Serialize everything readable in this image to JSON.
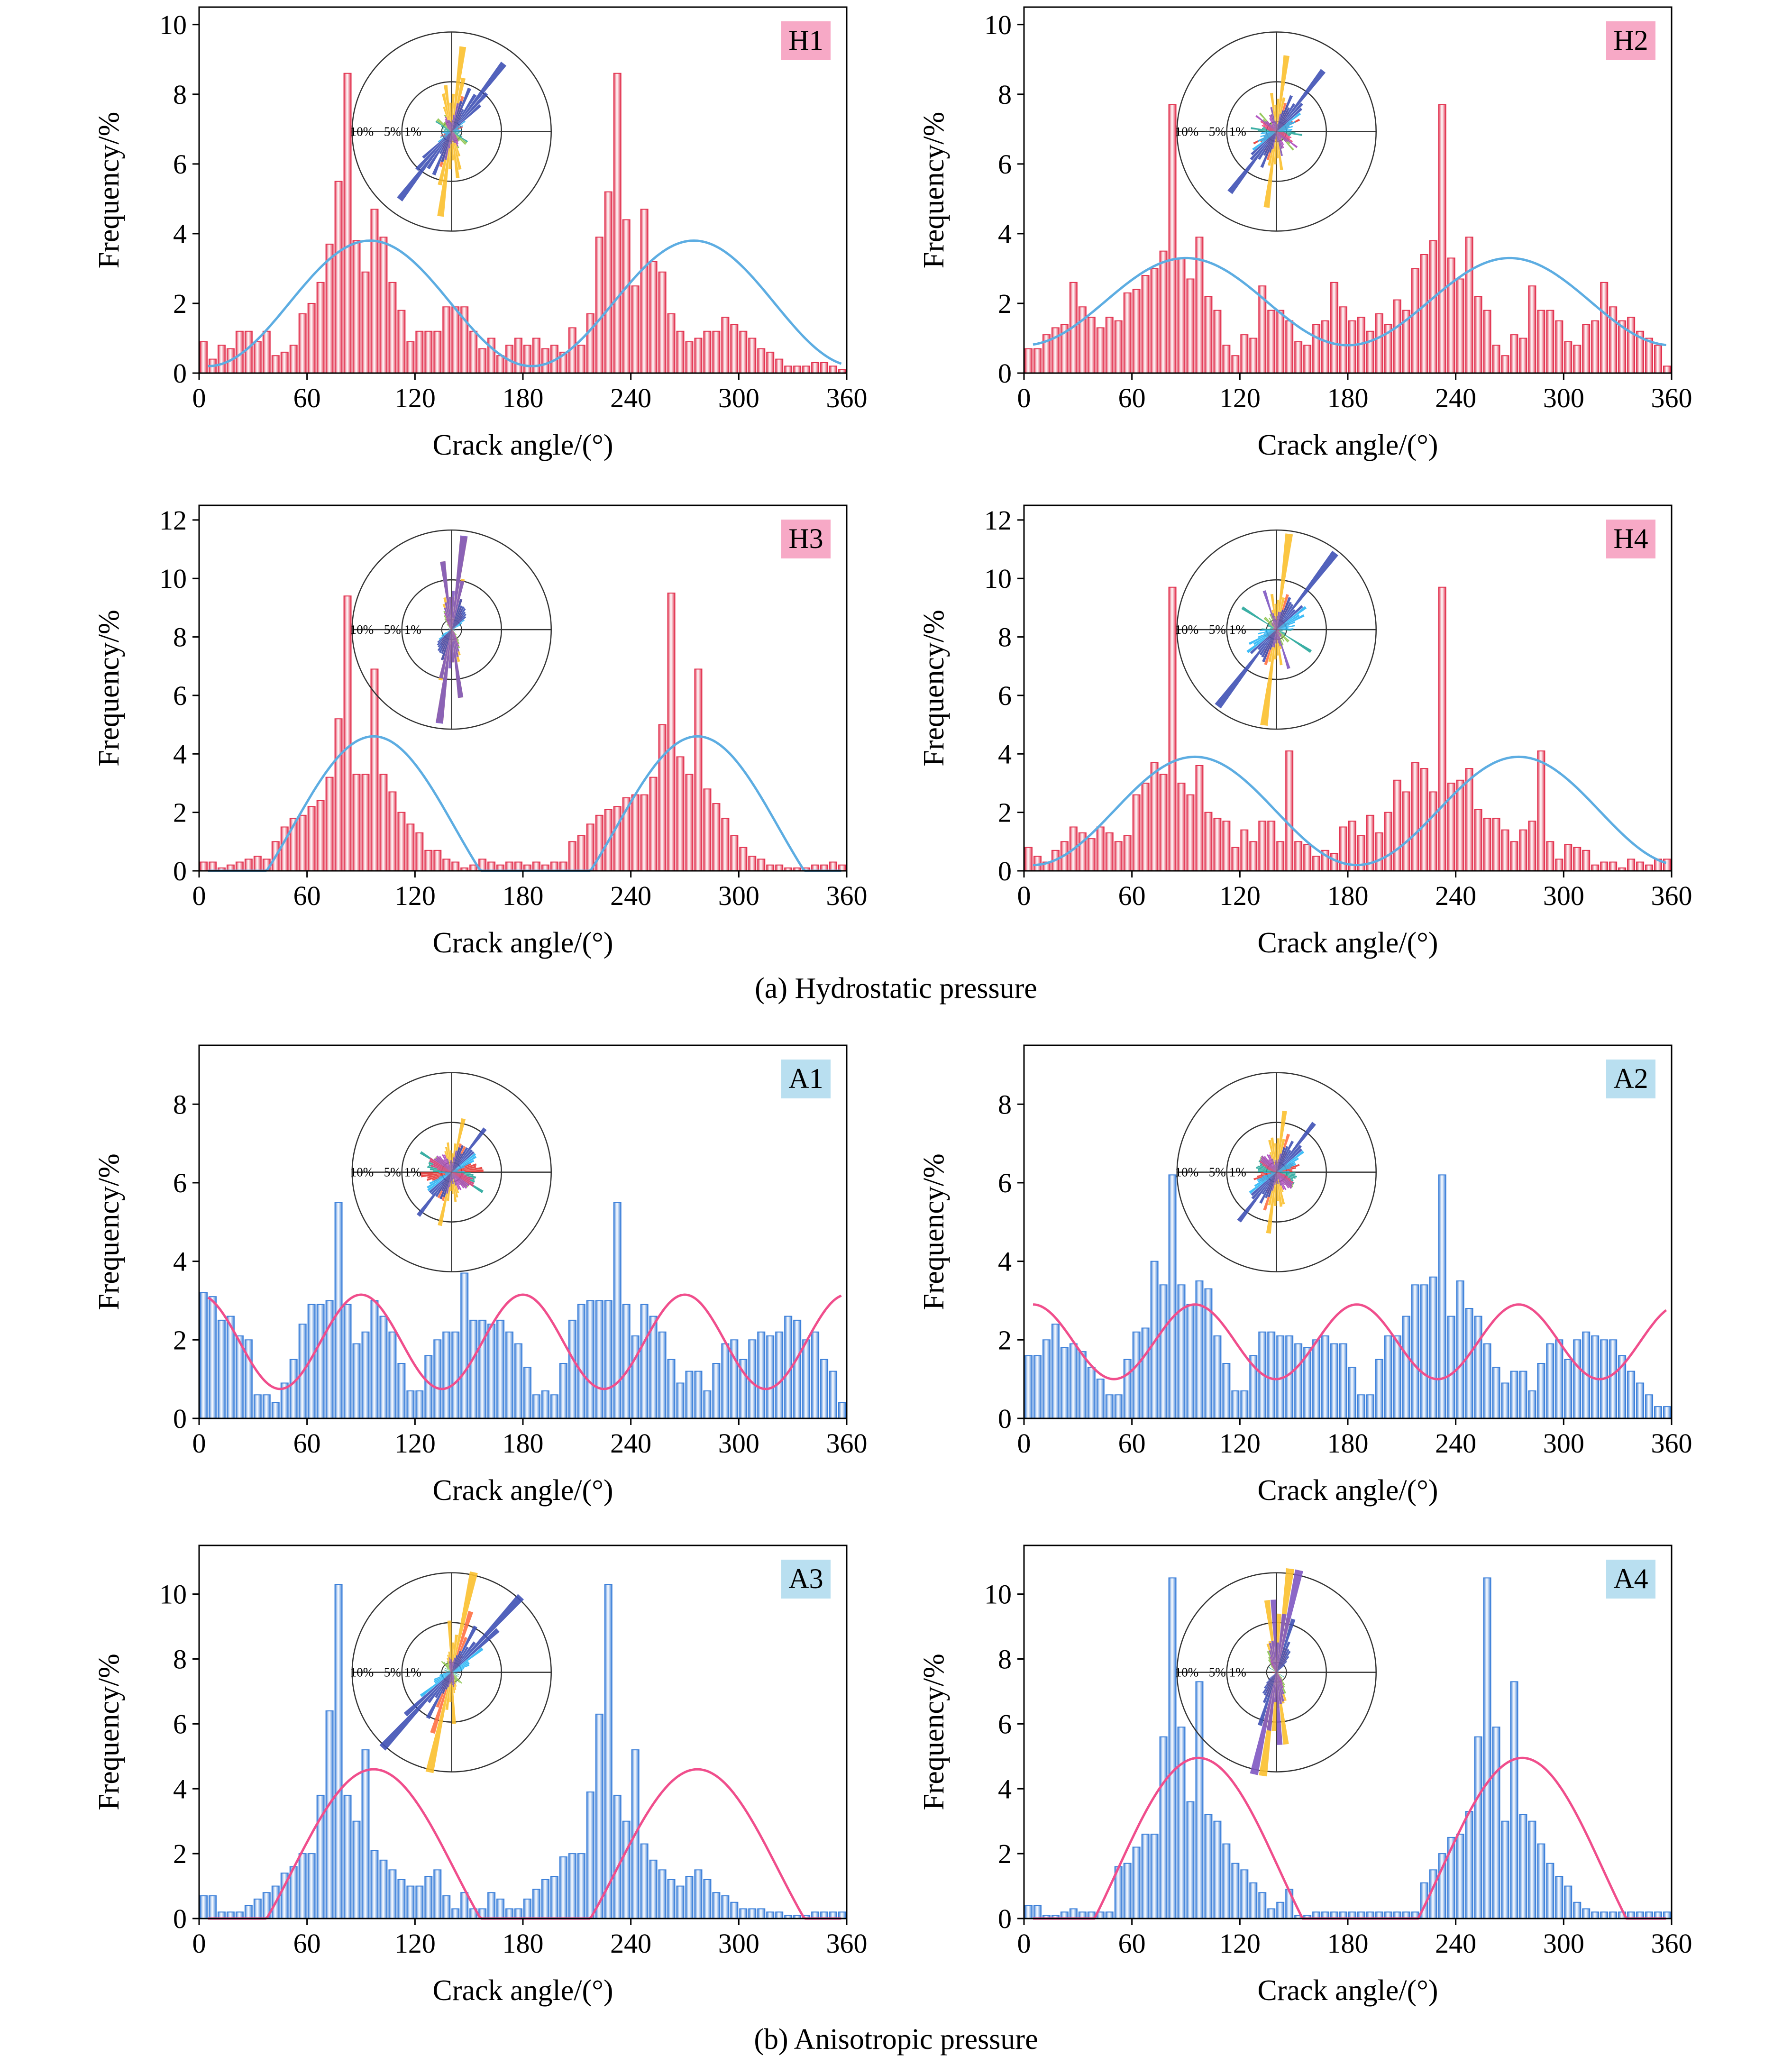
{
  "figure": {
    "captions": [
      "(a) Hydrostatic pressure",
      "(b) Anisotropic pressure"
    ]
  },
  "chart_data": [
    {
      "type": "bar",
      "tag": "H1",
      "tag_color": "#f7a9c6",
      "bar_color": "#e2324f",
      "fit_color": "#5dade2",
      "xlabel": "Crack angle/(°)",
      "ylabel": "Frequency/%",
      "xlim": [
        0,
        360
      ],
      "ylim": [
        0,
        10.5
      ],
      "xticks": [
        0,
        60,
        120,
        180,
        240,
        300,
        360
      ],
      "yticks": [
        0,
        2,
        4,
        6,
        8,
        10
      ],
      "bin_width": 5,
      "values": [
        0.9,
        0.4,
        0.8,
        0.7,
        1.2,
        1.2,
        0.9,
        1.2,
        0.5,
        0.6,
        0.8,
        1.7,
        2.0,
        2.6,
        3.7,
        5.5,
        8.6,
        3.8,
        2.9,
        4.7,
        3.9,
        2.6,
        1.8,
        0.9,
        1.2,
        1.2,
        1.2,
        1.9,
        1.9,
        1.9,
        1.2,
        0.7,
        1.0,
        0.5,
        0.8,
        1.0,
        0.8,
        1.0,
        0.7,
        0.8,
        0.6,
        1.3,
        0.8,
        1.7,
        3.9,
        5.2,
        8.6,
        4.4,
        2.5,
        4.7,
        3.2,
        2.9,
        1.7,
        1.2,
        0.9,
        1.0,
        1.2,
        1.2,
        1.6,
        1.4,
        1.2,
        1.0,
        0.7,
        0.6,
        0.4,
        0.2,
        0.2,
        0.2,
        0.3,
        0.3,
        0.2,
        0.1
      ],
      "fit": {
        "periods": 2,
        "mean": 2.0,
        "amp": 1.8,
        "peak": 95
      },
      "rose_labels": [
        "10%",
        "5%",
        "1%"
      ]
    },
    {
      "type": "bar",
      "tag": "H2",
      "tag_color": "#f7a9c6",
      "bar_color": "#e2324f",
      "fit_color": "#5dade2",
      "xlabel": "Crack angle/(°)",
      "ylabel": "Frequency/%",
      "xlim": [
        0,
        360
      ],
      "ylim": [
        0,
        10.5
      ],
      "xticks": [
        0,
        60,
        120,
        180,
        240,
        300,
        360
      ],
      "yticks": [
        0,
        2,
        4,
        6,
        8,
        10
      ],
      "bin_width": 5,
      "values": [
        0.7,
        0.7,
        1.1,
        1.3,
        1.4,
        2.6,
        1.9,
        1.6,
        1.3,
        1.6,
        1.5,
        2.3,
        2.4,
        2.8,
        3.0,
        3.5,
        7.7,
        3.3,
        2.7,
        3.9,
        2.2,
        1.8,
        0.8,
        0.5,
        1.1,
        1.0,
        2.5,
        1.8,
        1.8,
        1.5,
        0.9,
        0.8,
        1.4,
        1.5,
        2.6,
        1.9,
        1.5,
        1.6,
        1.2,
        1.7,
        1.4,
        2.1,
        1.8,
        3.0,
        3.4,
        3.8,
        7.7,
        3.3,
        2.7,
        3.9,
        2.2,
        1.8,
        0.8,
        0.5,
        1.1,
        1.0,
        2.5,
        1.8,
        1.8,
        1.5,
        0.9,
        0.8,
        1.4,
        1.5,
        2.6,
        1.9,
        1.5,
        1.6,
        1.2,
        1.0,
        0.8,
        0.2
      ],
      "fit": {
        "periods": 2,
        "mean": 2.05,
        "amp": 1.25,
        "peak": 90
      },
      "rose_labels": [
        "10%",
        "5%",
        "1%"
      ]
    },
    {
      "type": "bar",
      "tag": "H3",
      "tag_color": "#f7a9c6",
      "bar_color": "#e2324f",
      "fit_color": "#5dade2",
      "xlabel": "Crack angle/(°)",
      "ylabel": "Frequency/%",
      "xlim": [
        0,
        360
      ],
      "ylim": [
        0,
        12.5
      ],
      "xticks": [
        0,
        60,
        120,
        180,
        240,
        300,
        360
      ],
      "yticks": [
        0,
        2,
        4,
        6,
        8,
        10,
        12
      ],
      "bin_width": 5,
      "values": [
        0.3,
        0.3,
        0.1,
        0.2,
        0.3,
        0.4,
        0.5,
        0.4,
        1.0,
        1.5,
        1.8,
        1.9,
        2.2,
        2.4,
        3.2,
        5.2,
        9.4,
        3.3,
        3.3,
        6.9,
        3.3,
        2.7,
        2.0,
        1.6,
        1.3,
        0.7,
        0.7,
        0.4,
        0.3,
        0.1,
        0.2,
        0.4,
        0.3,
        0.2,
        0.3,
        0.3,
        0.2,
        0.3,
        0.2,
        0.3,
        0.3,
        1.0,
        1.2,
        1.6,
        1.9,
        2.1,
        2.2,
        2.5,
        2.6,
        2.6,
        3.2,
        5.0,
        9.5,
        3.9,
        3.3,
        6.9,
        2.8,
        2.3,
        1.8,
        1.2,
        0.8,
        0.5,
        0.4,
        0.2,
        0.2,
        0.1,
        0.1,
        0.1,
        0.2,
        0.2,
        0.3,
        0.2
      ],
      "fit": {
        "periods": 2,
        "mean": 1.5,
        "amp": 3.1,
        "peak": 97
      },
      "rose_labels": [
        "10%",
        "5%",
        "1%"
      ]
    },
    {
      "type": "bar",
      "tag": "H4",
      "tag_color": "#f7a9c6",
      "bar_color": "#e2324f",
      "fit_color": "#5dade2",
      "xlabel": "Crack angle/(°)",
      "ylabel": "Frequency/%",
      "xlim": [
        0,
        360
      ],
      "ylim": [
        0,
        12.5
      ],
      "xticks": [
        0,
        60,
        120,
        180,
        240,
        300,
        360
      ],
      "yticks": [
        0,
        2,
        4,
        6,
        8,
        10,
        12
      ],
      "bin_width": 5,
      "values": [
        0.8,
        0.5,
        0.3,
        0.7,
        1.0,
        1.5,
        1.3,
        1.1,
        1.5,
        1.3,
        1.0,
        1.2,
        2.6,
        3.0,
        3.7,
        3.3,
        9.7,
        3.0,
        2.6,
        3.6,
        2.0,
        1.8,
        1.7,
        0.8,
        1.4,
        1.0,
        1.7,
        1.7,
        1.0,
        4.1,
        1.0,
        0.9,
        0.5,
        0.7,
        0.6,
        1.5,
        1.7,
        1.2,
        1.9,
        1.3,
        2.0,
        3.1,
        2.7,
        3.7,
        3.5,
        2.7,
        9.7,
        3.0,
        3.1,
        3.5,
        2.1,
        1.8,
        1.8,
        1.4,
        1.0,
        1.4,
        1.7,
        4.1,
        1.0,
        0.4,
        0.9,
        0.8,
        0.7,
        0.2,
        0.3,
        0.3,
        0.1,
        0.4,
        0.3,
        0.2,
        0.4,
        0.4
      ],
      "fit": {
        "periods": 2,
        "mean": 2.05,
        "amp": 1.85,
        "peak": 95
      },
      "rose_labels": [
        "10%",
        "5%",
        "1%"
      ]
    },
    {
      "type": "bar",
      "tag": "A1",
      "tag_color": "#b9dff0",
      "bar_color": "#3b7fd9",
      "fit_color": "#f04e8c",
      "xlabel": "Crack angle/(°)",
      "ylabel": "Frequency/%",
      "xlim": [
        0,
        360
      ],
      "ylim": [
        0,
        9.5
      ],
      "xticks": [
        0,
        60,
        120,
        180,
        240,
        300,
        360
      ],
      "yticks": [
        0,
        2,
        4,
        6,
        8
      ],
      "bin_width": 5,
      "values": [
        3.2,
        3.1,
        2.5,
        2.6,
        2.1,
        2.0,
        0.6,
        0.6,
        0.4,
        0.9,
        1.5,
        2.4,
        2.9,
        2.9,
        3.0,
        5.5,
        2.9,
        1.9,
        2.2,
        3.0,
        2.6,
        2.2,
        1.4,
        0.7,
        0.7,
        1.6,
        2.0,
        2.2,
        2.2,
        3.7,
        2.5,
        2.5,
        2.4,
        2.5,
        2.2,
        1.9,
        1.3,
        0.6,
        0.7,
        0.6,
        1.4,
        2.5,
        2.9,
        3.0,
        3.0,
        3.0,
        5.5,
        2.9,
        2.1,
        2.9,
        2.6,
        2.2,
        1.5,
        0.9,
        1.2,
        1.2,
        0.7,
        1.4,
        1.9,
        2.0,
        1.5,
        2.0,
        2.2,
        2.1,
        2.2,
        2.6,
        2.5,
        2.0,
        2.2,
        1.5,
        1.2,
        0.4
      ],
      "fit": {
        "periods": 4,
        "mean": 1.95,
        "amp": 1.2,
        "peak": 90
      },
      "rose_labels": [
        "10%",
        "5%",
        "1%"
      ]
    },
    {
      "type": "bar",
      "tag": "A2",
      "tag_color": "#b9dff0",
      "bar_color": "#3b7fd9",
      "fit_color": "#f04e8c",
      "xlabel": "Crack angle/(°)",
      "ylabel": "Frequency/%",
      "xlim": [
        0,
        360
      ],
      "ylim": [
        0,
        9.5
      ],
      "xticks": [
        0,
        60,
        120,
        180,
        240,
        300,
        360
      ],
      "yticks": [
        0,
        2,
        4,
        6,
        8
      ],
      "bin_width": 5,
      "values": [
        1.6,
        1.6,
        2.0,
        2.4,
        1.8,
        1.9,
        1.7,
        1.3,
        1.0,
        0.6,
        0.6,
        1.5,
        2.2,
        2.3,
        4.0,
        3.4,
        6.2,
        3.4,
        2.9,
        3.5,
        3.3,
        2.1,
        1.4,
        0.7,
        0.7,
        1.6,
        2.2,
        2.2,
        2.1,
        2.1,
        1.9,
        1.8,
        2.0,
        2.1,
        1.9,
        1.9,
        1.3,
        0.6,
        0.6,
        1.5,
        2.1,
        2.1,
        2.6,
        3.4,
        3.4,
        3.6,
        6.2,
        2.6,
        3.5,
        2.8,
        2.6,
        1.9,
        1.3,
        0.9,
        1.2,
        1.2,
        0.7,
        1.4,
        1.9,
        2.0,
        1.5,
        2.0,
        2.2,
        2.1,
        2.0,
        2.0,
        1.6,
        1.2,
        0.9,
        0.6,
        0.3,
        0.3
      ],
      "fit": {
        "periods": 4,
        "mean": 1.95,
        "amp": 0.95,
        "peak": 95
      },
      "rose_labels": [
        "10%",
        "5%",
        "1%"
      ]
    },
    {
      "type": "bar",
      "tag": "A3",
      "tag_color": "#b9dff0",
      "bar_color": "#3b7fd9",
      "fit_color": "#f04e8c",
      "xlabel": "Crack angle/(°)",
      "ylabel": "Frequency/%",
      "xlim": [
        0,
        360
      ],
      "ylim": [
        0,
        11.5
      ],
      "xticks": [
        0,
        60,
        120,
        180,
        240,
        300,
        360
      ],
      "yticks": [
        0,
        2,
        4,
        6,
        8,
        10
      ],
      "bin_width": 5,
      "values": [
        0.7,
        0.7,
        0.2,
        0.2,
        0.2,
        0.4,
        0.6,
        0.8,
        1.0,
        1.4,
        1.6,
        2.0,
        2.0,
        3.8,
        6.4,
        10.3,
        3.8,
        3.0,
        5.2,
        2.1,
        1.8,
        1.5,
        1.2,
        1.0,
        1.0,
        1.3,
        1.5,
        0.7,
        0.3,
        0.8,
        0.3,
        0.3,
        0.8,
        0.6,
        0.3,
        0.3,
        0.6,
        0.9,
        1.2,
        1.3,
        1.9,
        2.0,
        2.0,
        3.9,
        6.3,
        10.3,
        3.8,
        3.0,
        5.2,
        2.3,
        1.8,
        1.5,
        1.2,
        1.0,
        1.3,
        1.5,
        1.2,
        0.8,
        0.7,
        0.5,
        0.3,
        0.3,
        0.3,
        0.2,
        0.2,
        0.1,
        0.1,
        0.1,
        0.2,
        0.2,
        0.2,
        0.2
      ],
      "fit": {
        "periods": 2,
        "mean": 1.5,
        "amp": 3.1,
        "peak": 97
      },
      "rose_labels": [
        "10%",
        "5%",
        "1%"
      ]
    },
    {
      "type": "bar",
      "tag": "A4",
      "tag_color": "#b9dff0",
      "bar_color": "#3b7fd9",
      "fit_color": "#f04e8c",
      "xlabel": "Crack angle/(°)",
      "ylabel": "Frequency/%",
      "xlim": [
        0,
        360
      ],
      "ylim": [
        0,
        11.5
      ],
      "xticks": [
        0,
        60,
        120,
        180,
        240,
        300,
        360
      ],
      "yticks": [
        0,
        2,
        4,
        6,
        8,
        10
      ],
      "bin_width": 5,
      "values": [
        0.4,
        0.4,
        0.1,
        0.1,
        0.2,
        0.3,
        0.2,
        0.2,
        0.2,
        0.2,
        1.6,
        1.7,
        2.2,
        2.6,
        2.6,
        5.6,
        10.5,
        5.9,
        3.6,
        7.3,
        3.2,
        3.0,
        2.3,
        1.7,
        1.5,
        1.1,
        0.8,
        0.3,
        0.5,
        0.9,
        0.1,
        0.1,
        0.2,
        0.2,
        0.2,
        0.2,
        0.2,
        0.2,
        0.2,
        0.2,
        0.2,
        0.2,
        0.2,
        0.2,
        1.1,
        1.5,
        2.0,
        2.5,
        2.6,
        3.3,
        5.6,
        10.5,
        5.9,
        3.0,
        7.3,
        3.2,
        3.0,
        2.3,
        1.7,
        1.3,
        1.0,
        0.5,
        0.3,
        0.2,
        0.2,
        0.2,
        0.2,
        0.2,
        0.2,
        0.2,
        0.2,
        0.2
      ],
      "fit": {
        "periods": 2,
        "mean": 1.5,
        "amp": 3.45,
        "peak": 97
      },
      "rose_labels": [
        "10%",
        "5%",
        "1%"
      ]
    }
  ]
}
